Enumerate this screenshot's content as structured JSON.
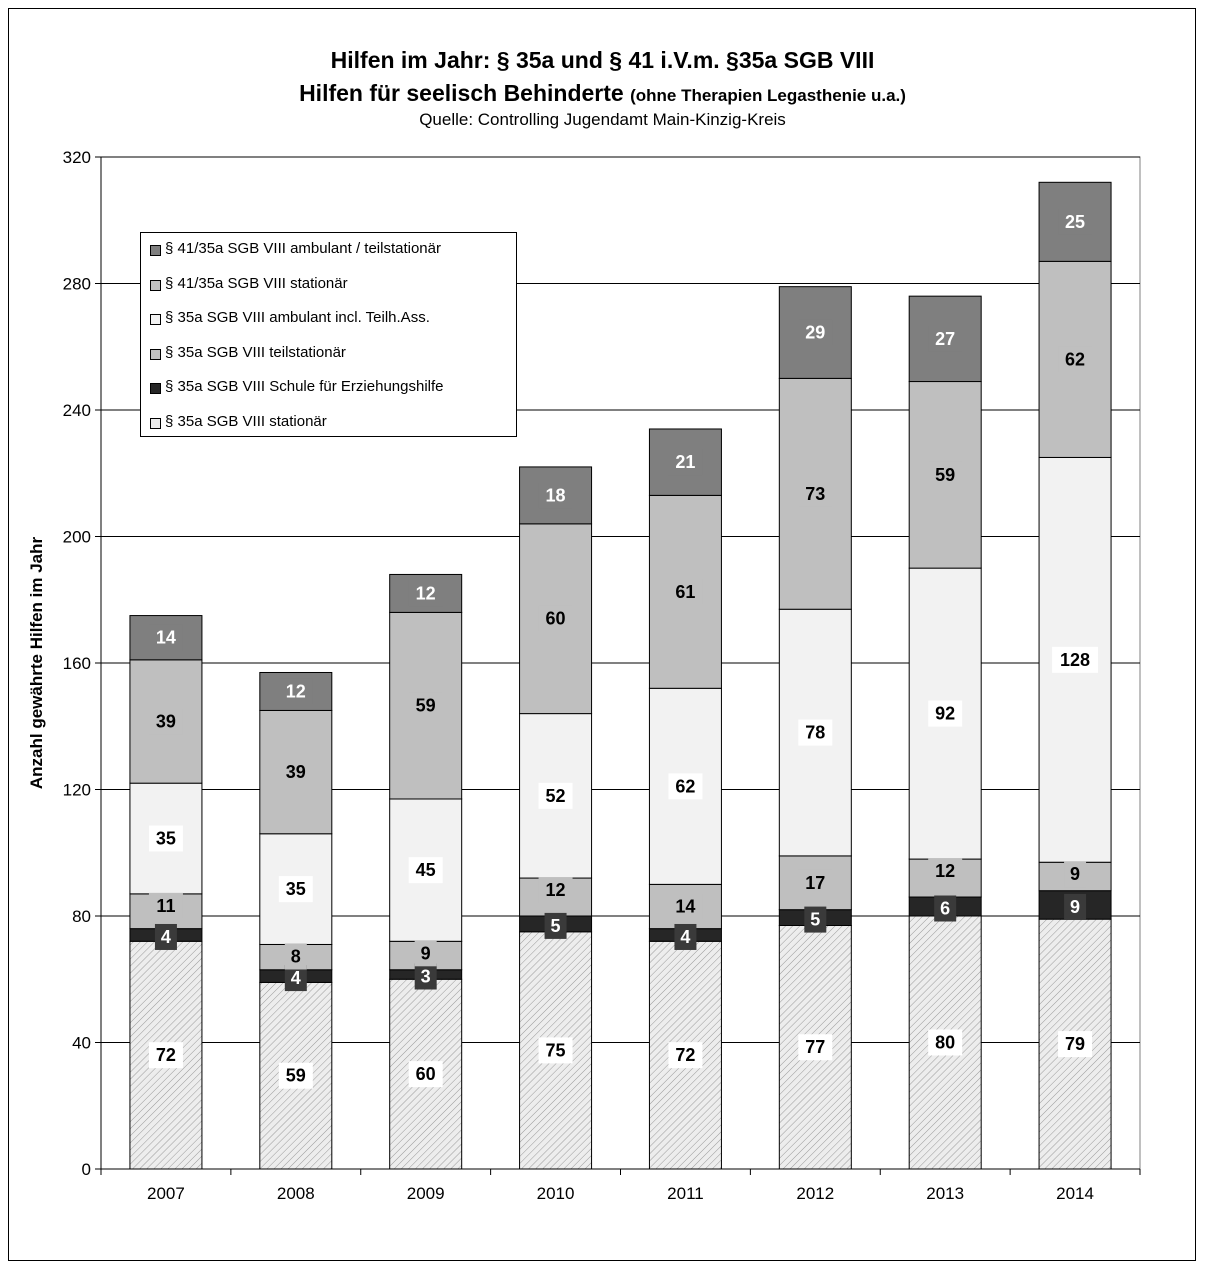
{
  "chart_data": {
    "type": "bar",
    "stacked": true,
    "title": "Hilfen im Jahr: § 35a und § 41 i.V.m. §35a SGB VIII",
    "subtitle_main": "Hilfen für seelisch Behinderte",
    "subtitle_note": "(ohne Therapien Legasthenie u.a.)",
    "source": "Quelle: Controlling Jugendamt Main-Kinzig-Kreis",
    "ylabel": "Anzahl gewährte Hilfen im Jahr",
    "xlabel": "",
    "ylim": [
      0,
      320
    ],
    "yticks": [
      0,
      40,
      80,
      120,
      160,
      200,
      240,
      280,
      320
    ],
    "grid": true,
    "legend_position": "top-left",
    "categories": [
      "2007",
      "2008",
      "2009",
      "2010",
      "2011",
      "2012",
      "2013",
      "2014"
    ],
    "series": [
      {
        "name": "§ 35a SGB VIII stationär",
        "values": [
          72,
          59,
          60,
          75,
          72,
          77,
          80,
          79
        ],
        "color": "#d9d9d9",
        "pattern": "hatch"
      },
      {
        "name": "§ 35a SGB VIII Schule für Erziehungshilfe",
        "values": [
          4,
          4,
          3,
          5,
          4,
          5,
          6,
          9
        ],
        "color": "#262626"
      },
      {
        "name": "§ 35a SGB VIII teilstationär",
        "values": [
          11,
          8,
          9,
          12,
          14,
          17,
          12,
          9
        ],
        "color": "#bfbfbf"
      },
      {
        "name": "§ 35a SGB VIII ambulant incl. Teilh.Ass.",
        "values": [
          35,
          35,
          45,
          52,
          62,
          78,
          92,
          128
        ],
        "color": "#f2f2f2"
      },
      {
        "name": "§ 41/35a SGB VIII stationär",
        "values": [
          39,
          39,
          59,
          60,
          61,
          73,
          59,
          62
        ],
        "color": "#bfbfbf"
      },
      {
        "name": "§ 41/35a SGB VIII ambulant / teilstationär",
        "values": [
          14,
          12,
          12,
          18,
          21,
          29,
          27,
          25
        ],
        "color": "#7f7f7f"
      }
    ]
  }
}
